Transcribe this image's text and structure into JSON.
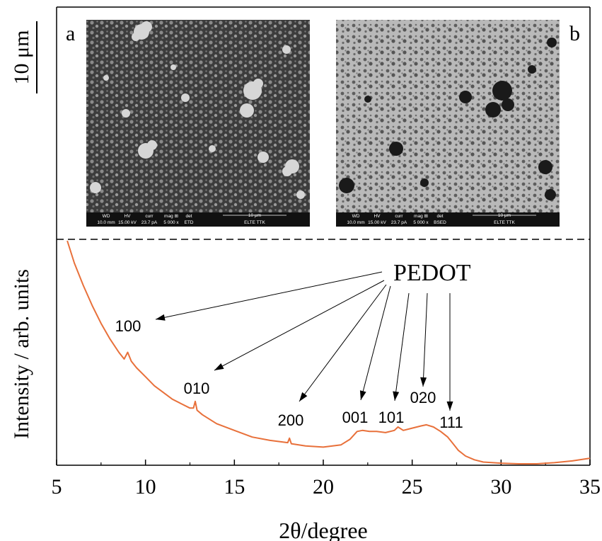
{
  "scale_bar": {
    "label": "10 μm"
  },
  "panels": [
    {
      "letter": "a",
      "info_headers": [
        "WD",
        "HV",
        "curr",
        "mag ⊞",
        "det"
      ],
      "info_values": [
        "10.0 mm",
        "15.00 kV",
        "23.7 pA",
        "5 000 x",
        "ETD"
      ],
      "scale_text": "10 μm",
      "lab": "ELTE TTK"
    },
    {
      "letter": "b",
      "info_headers": [
        "WD",
        "HV",
        "curr",
        "mag ⊞",
        "det"
      ],
      "info_values": [
        "10.0 mm",
        "15.00 kV",
        "23.7 pA",
        "5 000 x",
        "BSED"
      ],
      "scale_text": "10 μm",
      "lab": "ELTE TTK"
    }
  ],
  "colors": {
    "trace": "#e8703a",
    "axis": "#000000",
    "sem_dark": "#2a2a2a",
    "sem_light": "#bdbdbd"
  },
  "chart_data": {
    "type": "line",
    "xlabel": "2θ/degree",
    "ylabel": "Intensity / arb. units",
    "xlim": [
      5,
      35
    ],
    "xticks": [
      5,
      10,
      15,
      20,
      25,
      30,
      35
    ],
    "ylim": [
      0,
      1
    ],
    "grid": false,
    "annotation_label": "PEDOT",
    "peaks": [
      {
        "label": "100",
        "x": 9.0
      },
      {
        "label": "010",
        "x": 12.8
      },
      {
        "label": "200",
        "x": 18.1
      },
      {
        "label": "001",
        "x": 22.0
      },
      {
        "label": "101",
        "x": 24.2
      },
      {
        "label": "020",
        "x": 25.8
      },
      {
        "label": "111",
        "x": 27.1
      }
    ],
    "series": [
      {
        "x": [
          5.6,
          6.0,
          6.5,
          7.0,
          7.5,
          8.0,
          8.5,
          8.8,
          9.0,
          9.2,
          9.5,
          10.0,
          10.5,
          11.0,
          11.5,
          12.0,
          12.5,
          12.7,
          12.8,
          12.9,
          13.2,
          14.0,
          15.0,
          16.0,
          17.0,
          18.0,
          18.1,
          18.2,
          19.0,
          20.0,
          21.0,
          21.5,
          21.9,
          22.2,
          22.6,
          23.0,
          23.5,
          24.0,
          24.2,
          24.5,
          25.0,
          25.5,
          25.8,
          26.2,
          26.6,
          27.0,
          27.3,
          27.6,
          28.0,
          28.5,
          29.0,
          30.0,
          31.0,
          32.0,
          33.0,
          34.0,
          35.0
        ],
        "y": [
          1.0,
          0.9,
          0.8,
          0.71,
          0.63,
          0.56,
          0.5,
          0.47,
          0.5,
          0.46,
          0.43,
          0.39,
          0.35,
          0.32,
          0.29,
          0.27,
          0.25,
          0.25,
          0.28,
          0.24,
          0.22,
          0.18,
          0.15,
          0.12,
          0.105,
          0.095,
          0.115,
          0.09,
          0.08,
          0.075,
          0.085,
          0.11,
          0.145,
          0.15,
          0.145,
          0.145,
          0.14,
          0.15,
          0.165,
          0.15,
          0.16,
          0.17,
          0.175,
          0.165,
          0.145,
          0.12,
          0.09,
          0.06,
          0.035,
          0.018,
          0.008,
          0.003,
          0.0,
          0.0,
          0.005,
          0.013,
          0.025
        ]
      }
    ]
  }
}
